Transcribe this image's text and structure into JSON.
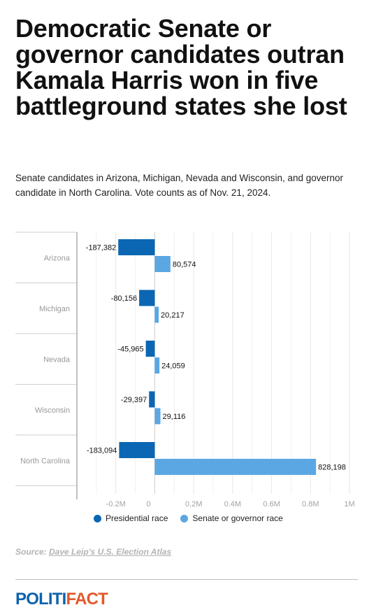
{
  "title": "Democratic Senate or governor candidates outran Kamala Harris won in five battleground states she lost",
  "subtitle": "Senate candidates in Arizona, Michigan, Nevada and Wisconsin, and governor candidate in North Carolina. Vote counts as of Nov. 21, 2024.",
  "colors": {
    "presidential": "#0b67b3",
    "senate_governor": "#5aa7e3"
  },
  "chart_data": {
    "type": "bar",
    "orientation": "horizontal",
    "categories": [
      "Arizona",
      "Michigan",
      "Nevada",
      "Wisconsin",
      "North Carolina"
    ],
    "series": [
      {
        "name": "Presidential race",
        "values": [
          -187382,
          -80156,
          -45965,
          -29397,
          -183094
        ],
        "labels": [
          "-187,382",
          "-80,156",
          "-45,965",
          "-29,397",
          "-183,094"
        ]
      },
      {
        "name": "Senate or governor race",
        "values": [
          80574,
          20217,
          24059,
          29116,
          828198
        ],
        "labels": [
          "80,574",
          "20,217",
          "24,059",
          "29,116",
          "828,198"
        ]
      }
    ],
    "xlim": [
      -0.4,
      1.0
    ],
    "x_unit": "millions",
    "ticks": [
      -0.2,
      0,
      0.2,
      0.4,
      0.6,
      0.8,
      1.0
    ],
    "tick_labels": [
      "-0.2M",
      "0",
      "0.2M",
      "0.4M",
      "0.6M",
      "0.8M",
      "1M"
    ],
    "grid": true,
    "legend_position": "bottom"
  },
  "source": {
    "prefix": "Source: ",
    "link_text": "Dave Leip's U.S. Election Atlas"
  },
  "logo": {
    "part1": "POLITI",
    "part2": "FACT"
  }
}
